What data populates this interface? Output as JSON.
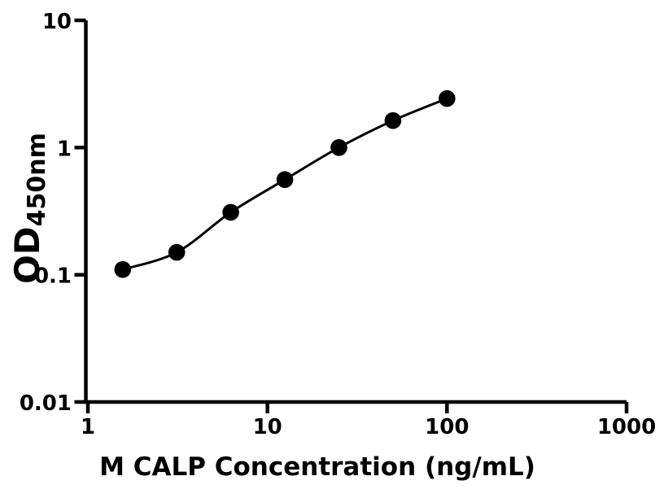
{
  "figure": {
    "background_color": "#ffffff",
    "foreground_color": "#000000"
  },
  "chart_data": {
    "type": "scatter",
    "subtype": "standard-curve-with-fit-line",
    "title": "",
    "xlabel": "M CALP Concentration (ng/mL)",
    "ylabel": "OD",
    "ylabel_subscript": "450nm",
    "xscale": "log",
    "yscale": "log",
    "xlim": [
      1,
      1000
    ],
    "ylim": [
      0.01,
      10
    ],
    "x_ticks": [
      1,
      10,
      100,
      1000
    ],
    "x_tick_labels": [
      "1",
      "10",
      "100",
      "1000"
    ],
    "y_ticks": [
      0.01,
      0.1,
      1,
      10
    ],
    "y_tick_labels": [
      "0.01",
      "0.1",
      "1",
      "10"
    ],
    "grid": "off",
    "legend": "none",
    "series": [
      {
        "marker": "filled-circle",
        "marker_color": "#000000",
        "line_color": "#000000",
        "x": [
          1.5625,
          3.125,
          6.25,
          12.5,
          25,
          50,
          100
        ],
        "y": [
          0.11,
          0.15,
          0.31,
          0.56,
          1.0,
          1.63,
          2.43
        ]
      }
    ]
  }
}
